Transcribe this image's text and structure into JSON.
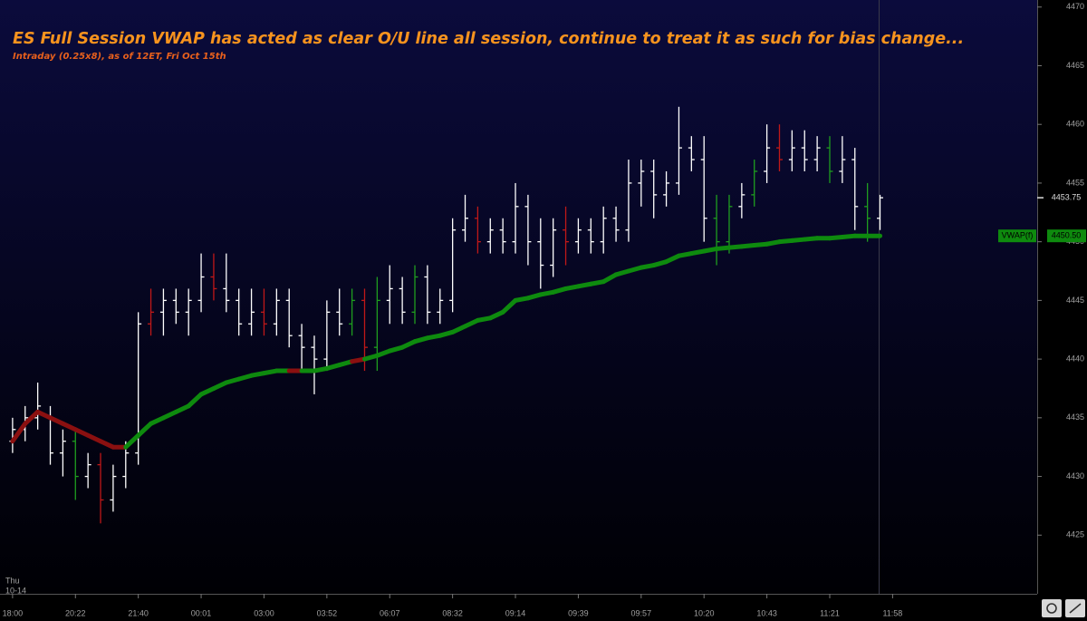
{
  "chart_data": {
    "type": "ohlc",
    "title": "ES Full Session VWAP has acted as clear O/U line all session, continue to treat it as such for bias change...",
    "subtitle": "Intraday (0.25x8), as of 12ET, Fri Oct 15th",
    "date_label": [
      "Thu",
      "10-14"
    ],
    "ylim": [
      4420,
      4470.6
    ],
    "yticks": [
      4425,
      4430,
      4435,
      4440,
      4445,
      4450,
      4455,
      4460,
      4465,
      4470
    ],
    "xlim": [
      -1,
      81.5
    ],
    "xticks": [
      {
        "value": 0,
        "label": "18:00"
      },
      {
        "value": 5,
        "label": "20:22"
      },
      {
        "value": 10,
        "label": "21:40"
      },
      {
        "value": 15,
        "label": "00:01"
      },
      {
        "value": 20,
        "label": "03:00"
      },
      {
        "value": 25,
        "label": "03:52"
      },
      {
        "value": 30,
        "label": "06:07"
      },
      {
        "value": 35,
        "label": "08:32"
      },
      {
        "value": 40,
        "label": "09:14"
      },
      {
        "value": 45,
        "label": "09:39"
      },
      {
        "value": 50,
        "label": "09:57"
      },
      {
        "value": 55,
        "label": "10:20"
      },
      {
        "value": 60,
        "label": "10:43"
      },
      {
        "value": 65,
        "label": "11:21"
      },
      {
        "value": 70,
        "label": "11:58"
      }
    ],
    "last_price": 4453.75,
    "series": [
      {
        "type": "ohlc",
        "values": [
          [
            4433,
            4435,
            4432,
            4434
          ],
          [
            4434,
            4436,
            4433,
            4435
          ],
          [
            4435,
            4438,
            4434,
            4436
          ],
          [
            4435,
            4436,
            4431,
            4432
          ],
          [
            4432,
            4434,
            4430,
            4433
          ],
          [
            4433,
            4434,
            4428,
            4430
          ],
          [
            4430,
            4432,
            4429,
            4431
          ],
          [
            4431,
            4432,
            4426,
            4428
          ],
          [
            4428,
            4431,
            4427,
            4430
          ],
          [
            4430,
            4433,
            4429,
            4432
          ],
          [
            4432,
            4444,
            4431,
            4443
          ],
          [
            4443,
            4446,
            4442,
            4444
          ],
          [
            4444,
            4446,
            4442,
            4445
          ],
          [
            4445,
            4446,
            4443,
            4444
          ],
          [
            4444,
            4446,
            4442,
            4445
          ],
          [
            4445,
            4449,
            4444,
            4447
          ],
          [
            4447,
            4449,
            4445,
            4446
          ],
          [
            4446,
            4449,
            4444,
            4445
          ],
          [
            4445,
            4446,
            4442,
            4443
          ],
          [
            4443,
            4446,
            4442,
            4444
          ],
          [
            4444,
            4446,
            4442,
            4443
          ],
          [
            4443,
            4446,
            4442,
            4445
          ],
          [
            4445,
            4446,
            4441,
            4442
          ],
          [
            4442,
            4443,
            4439,
            4441
          ],
          [
            4441,
            4442,
            4437,
            4440
          ],
          [
            4440,
            4445,
            4439,
            4444
          ],
          [
            4444,
            4446,
            4442,
            4443
          ],
          [
            4443,
            4446,
            4442,
            4445
          ],
          [
            4445,
            4446,
            4439,
            4441
          ],
          [
            4441,
            4447,
            4439,
            4445
          ],
          [
            4445,
            4448,
            4443,
            4446
          ],
          [
            4446,
            4447,
            4443,
            4444
          ],
          [
            4444,
            4448,
            4443,
            4447
          ],
          [
            4447,
            4448,
            4443,
            4444
          ],
          [
            4444,
            4446,
            4443,
            4445
          ],
          [
            4445,
            4452,
            4444,
            4451
          ],
          [
            4451,
            4454,
            4450,
            4452
          ],
          [
            4452,
            4453,
            4449,
            4450
          ],
          [
            4450,
            4452,
            4449,
            4451
          ],
          [
            4451,
            4452,
            4449,
            4450
          ],
          [
            4450,
            4455,
            4449,
            4453
          ],
          [
            4453,
            4454,
            4448,
            4450
          ],
          [
            4450,
            4452,
            4446,
            4448
          ],
          [
            4448,
            4452,
            4447,
            4451
          ],
          [
            4451,
            4453,
            4448,
            4450
          ],
          [
            4450,
            4452,
            4449,
            4451
          ],
          [
            4451,
            4452,
            4449,
            4450
          ],
          [
            4450,
            4453,
            4449,
            4452
          ],
          [
            4452,
            4453,
            4450,
            4451
          ],
          [
            4451,
            4457,
            4450,
            4455
          ],
          [
            4455,
            4457,
            4453,
            4456
          ],
          [
            4456,
            4457,
            4452,
            4454
          ],
          [
            4454,
            4456,
            4453,
            4455
          ],
          [
            4455,
            4461.5,
            4454,
            4458
          ],
          [
            4458,
            4459,
            4456,
            4457
          ],
          [
            4457,
            4459,
            4450,
            4452
          ],
          [
            4452,
            4454,
            4448,
            4450
          ],
          [
            4450,
            4454,
            4449,
            4453
          ],
          [
            4453,
            4455,
            4452,
            4454
          ],
          [
            4454,
            4457,
            4453,
            4456
          ],
          [
            4456,
            4460,
            4455,
            4458
          ],
          [
            4458,
            4460,
            4456,
            4457
          ],
          [
            4457,
            4459.5,
            4456,
            4458
          ],
          [
            4458,
            4459.5,
            4456,
            4457
          ],
          [
            4457,
            4459,
            4456,
            4458
          ],
          [
            4458,
            4459,
            4455,
            4456
          ],
          [
            4456,
            4459,
            4455,
            4457
          ],
          [
            4457,
            4458,
            4451,
            4453
          ],
          [
            4453,
            4455,
            4450,
            4452
          ],
          [
            4452,
            4454,
            4451,
            4453.75
          ]
        ],
        "colors": [
          "#ffffff",
          "#ffffff",
          "#ffffff",
          "#ffffff",
          "#ffffff",
          "#1f9e1f",
          "#ffffff",
          "#c01818",
          "#ffffff",
          "#ffffff",
          "#ffffff",
          "#c01818",
          "#ffffff",
          "#ffffff",
          "#ffffff",
          "#ffffff",
          "#c01818",
          "#ffffff",
          "#ffffff",
          "#ffffff",
          "#c01818",
          "#ffffff",
          "#ffffff",
          "#ffffff",
          "#ffffff",
          "#ffffff",
          "#ffffff",
          "#1f9e1f",
          "#c01818",
          "#1f9e1f",
          "#ffffff",
          "#ffffff",
          "#1f9e1f",
          "#ffffff",
          "#ffffff",
          "#ffffff",
          "#ffffff",
          "#c01818",
          "#ffffff",
          "#ffffff",
          "#ffffff",
          "#ffffff",
          "#ffffff",
          "#ffffff",
          "#c01818",
          "#ffffff",
          "#ffffff",
          "#ffffff",
          "#ffffff",
          "#ffffff",
          "#ffffff",
          "#ffffff",
          "#ffffff",
          "#ffffff",
          "#ffffff",
          "#ffffff",
          "#1f9e1f",
          "#1f9e1f",
          "#ffffff",
          "#1f9e1f",
          "#ffffff",
          "#c01818",
          "#ffffff",
          "#ffffff",
          "#ffffff",
          "#1f9e1f",
          "#ffffff",
          "#ffffff",
          "#1f9e1f",
          "#ffffff"
        ]
      },
      {
        "type": "line",
        "name": "VWAP(f)",
        "values": [
          4433,
          4434.5,
          4435.5,
          4435,
          4434.5,
          4434,
          4433.5,
          4433,
          4432.5,
          4432.5,
          4433.5,
          4434.5,
          4435,
          4435.5,
          4436,
          4437,
          4437.5,
          4438,
          4438.3,
          4438.6,
          4438.8,
          4439,
          4439,
          4439,
          4439,
          4439.2,
          4439.5,
          4439.8,
          4440,
          4440.3,
          4440.7,
          4441,
          4441.5,
          4441.8,
          4442,
          4442.3,
          4442.8,
          4443.3,
          4443.5,
          4444,
          4445,
          4445.2,
          4445.5,
          4445.7,
          4446,
          4446.2,
          4446.4,
          4446.6,
          4447.2,
          4447.5,
          4447.8,
          4448,
          4448.3,
          4448.8,
          4449,
          4449.2,
          4449.4,
          4449.5,
          4449.6,
          4449.7,
          4449.8,
          4450,
          4450.1,
          4450.2,
          4450.3,
          4450.3,
          4450.4,
          4450.5,
          4450.5,
          4450.5
        ],
        "colors": [
          "#0e8a0e",
          "#8b1010",
          "#8b1010",
          "#8b1010",
          "#8b1010",
          "#8b1010",
          "#8b1010",
          "#8b1010",
          "#8b1010",
          "#8b1010",
          "#0e8a0e",
          "#0e8a0e",
          "#0e8a0e",
          "#0e8a0e",
          "#0e8a0e",
          "#0e8a0e",
          "#0e8a0e",
          "#0e8a0e",
          "#0e8a0e",
          "#0e8a0e",
          "#0e8a0e",
          "#0e8a0e",
          "#0e8a0e",
          "#8b1010",
          "#0e8a0e",
          "#0e8a0e",
          "#0e8a0e",
          "#0e8a0e",
          "#8b1010",
          "#0e8a0e",
          "#0e8a0e",
          "#0e8a0e",
          "#0e8a0e",
          "#0e8a0e",
          "#0e8a0e",
          "#0e8a0e",
          "#0e8a0e",
          "#0e8a0e",
          "#0e8a0e",
          "#0e8a0e",
          "#0e8a0e",
          "#0e8a0e",
          "#0e8a0e",
          "#0e8a0e",
          "#0e8a0e",
          "#0e8a0e",
          "#0e8a0e",
          "#0e8a0e",
          "#0e8a0e",
          "#0e8a0e",
          "#0e8a0e",
          "#0e8a0e",
          "#0e8a0e",
          "#0e8a0e",
          "#0e8a0e",
          "#0e8a0e",
          "#0e8a0e",
          "#0e8a0e",
          "#0e8a0e",
          "#0e8a0e",
          "#0e8a0e",
          "#0e8a0e",
          "#0e8a0e",
          "#0e8a0e",
          "#0e8a0e",
          "#0e8a0e",
          "#0e8a0e",
          "#0e8a0e",
          "#0e8a0e",
          "#0e8a0e"
        ],
        "last_label": {
          "value": 4450.5,
          "label": "4450.50"
        }
      }
    ]
  }
}
